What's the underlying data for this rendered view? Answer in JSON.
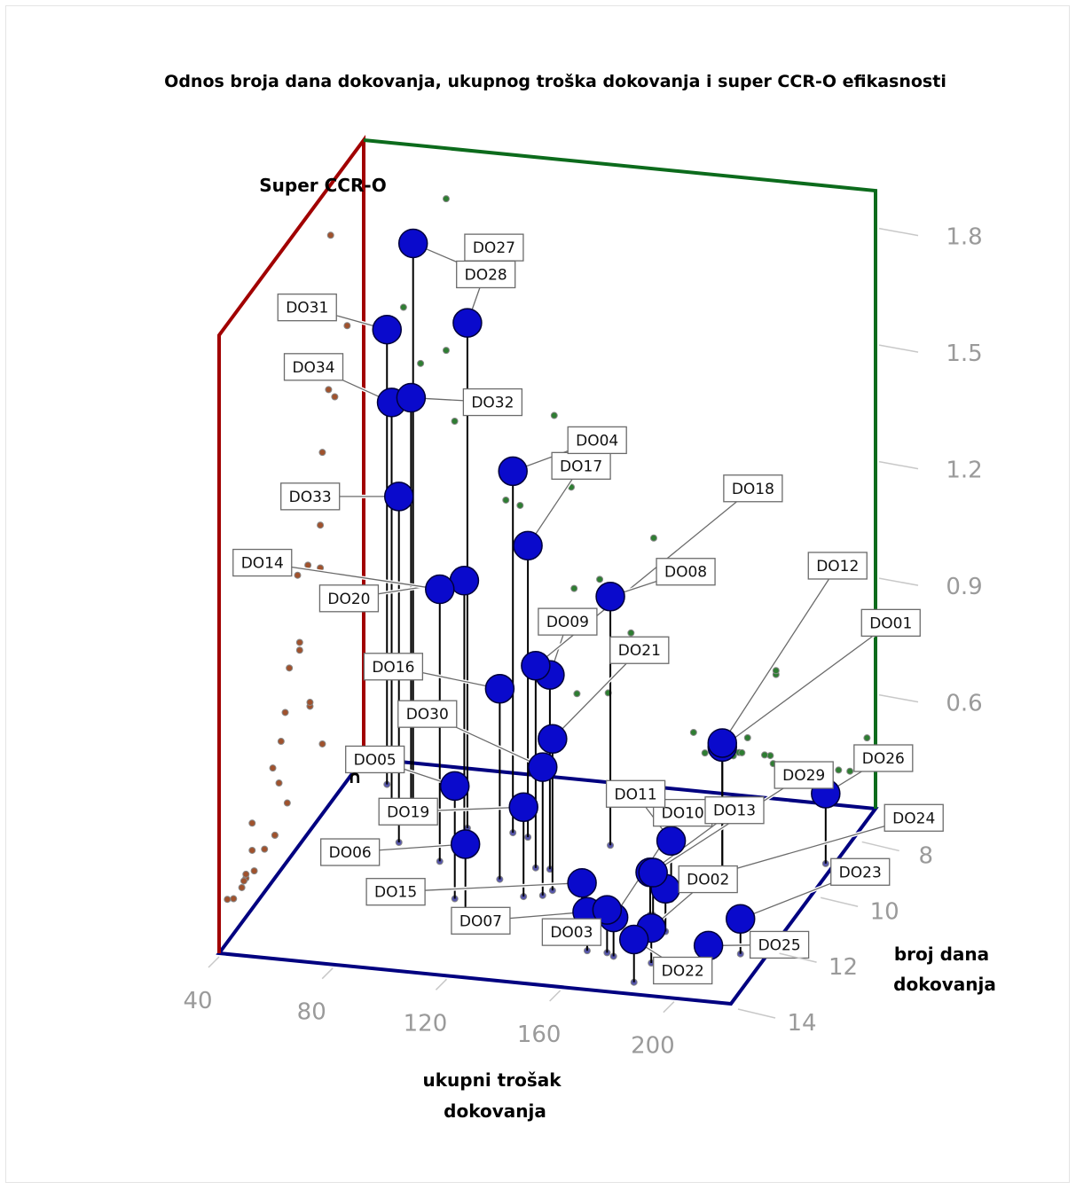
{
  "chart_data": {
    "type": "scatter",
    "title": "Odnos broja dana dokovanja, ukupnog troška dokovanja i super CCR-O efikasnosti",
    "zlabel": "Super CCR-O",
    "xlabel": "ukupni trošak dokovanja",
    "ylabel": "broj dana dokovanja",
    "x_ticks": [
      "40",
      "80",
      "120",
      "160",
      "200"
    ],
    "y_ticks": [
      "8",
      "10",
      "12",
      "14"
    ],
    "z_ticks": [
      "1.8",
      "1.5",
      "1.2",
      "0.9",
      "0.6"
    ],
    "marker_glyph": "∩",
    "xlim": [
      40,
      220
    ],
    "ylim": [
      7,
      14
    ],
    "zlim": [
      0.33,
      1.92
    ],
    "colors": {
      "points": "#0a0acc",
      "points_outline": "#00003a",
      "back_left_frame": "#a10000",
      "back_right_frame": "#0c6b1c",
      "floor_frame": "#000080",
      "stem": "#000000",
      "proj_floor": "#5555aa",
      "proj_left": "#a0522d",
      "proj_back": "#2e7d32"
    },
    "points": [
      {
        "label": "DO01",
        "x": 185,
        "y": 9.6,
        "z": 0.65
      },
      {
        "label": "DO02",
        "x": 184,
        "y": 12.9,
        "z": 0.42
      },
      {
        "label": "DO03",
        "x": 167,
        "y": 12.7,
        "z": 0.44
      },
      {
        "label": "DO04",
        "x": 107,
        "y": 9.0,
        "z": 1.26
      },
      {
        "label": "DO05",
        "x": 104,
        "y": 11.4,
        "z": 0.62
      },
      {
        "label": "DO06",
        "x": 115,
        "y": 12.4,
        "z": 0.55
      },
      {
        "label": "DO07",
        "x": 160,
        "y": 12.7,
        "z": 0.43
      },
      {
        "label": "DO08",
        "x": 142,
        "y": 9.1,
        "z": 0.97
      },
      {
        "label": "DO09",
        "x": 128,
        "y": 10.1,
        "z": 0.83
      },
      {
        "label": "DO10",
        "x": 170,
        "y": 12.8,
        "z": 0.43
      },
      {
        "label": "DO11",
        "x": 175,
        "y": 10.7,
        "z": 0.48
      },
      {
        "label": "DO12",
        "x": 185,
        "y": 9.6,
        "z": 0.66
      },
      {
        "label": "DO13",
        "x": 172,
        "y": 11.3,
        "z": 0.44
      },
      {
        "label": "DO14",
        "x": 90,
        "y": 10.2,
        "z": 1.03
      },
      {
        "label": "DO15",
        "x": 156,
        "y": 12.4,
        "z": 0.48
      },
      {
        "label": "DO16",
        "x": 114,
        "y": 10.6,
        "z": 0.82
      },
      {
        "label": "DO17",
        "x": 113,
        "y": 9.1,
        "z": 1.08
      },
      {
        "label": "DO18",
        "x": 123,
        "y": 10.1,
        "z": 0.85
      },
      {
        "label": "DO19",
        "x": 126,
        "y": 11.1,
        "z": 0.56
      },
      {
        "label": "DO20",
        "x": 95,
        "y": 9.7,
        "z": 1.02
      },
      {
        "label": "DO21",
        "x": 134,
        "y": 10.8,
        "z": 0.72
      },
      {
        "label": "DO22",
        "x": 183,
        "y": 13.6,
        "z": 0.44
      },
      {
        "label": "DO23",
        "x": 211,
        "y": 12.3,
        "z": 0.42
      },
      {
        "label": "DO24",
        "x": 181,
        "y": 11.8,
        "z": 0.44
      },
      {
        "label": "DO25",
        "x": 207,
        "y": 13.3,
        "z": 0.42
      },
      {
        "label": "DO26",
        "x": 217,
        "y": 9.0,
        "z": 0.51
      },
      {
        "label": "DO27",
        "x": 91,
        "y": 9.0,
        "z": 1.63
      },
      {
        "label": "DO28",
        "x": 69,
        "y": 8.6,
        "z": 1.79
      },
      {
        "label": "DO29",
        "x": 173,
        "y": 11.3,
        "z": 0.44
      },
      {
        "label": "DO30",
        "x": 132,
        "y": 11.0,
        "z": 0.66
      },
      {
        "label": "DO31",
        "x": 54,
        "y": 7.8,
        "z": 1.5
      },
      {
        "label": "DO32",
        "x": 69,
        "y": 8.7,
        "z": 1.4
      },
      {
        "label": "DO33",
        "x": 72,
        "y": 9.7,
        "z": 1.22
      },
      {
        "label": "DO34",
        "x": 60,
        "y": 8.4,
        "z": 1.36
      }
    ]
  }
}
